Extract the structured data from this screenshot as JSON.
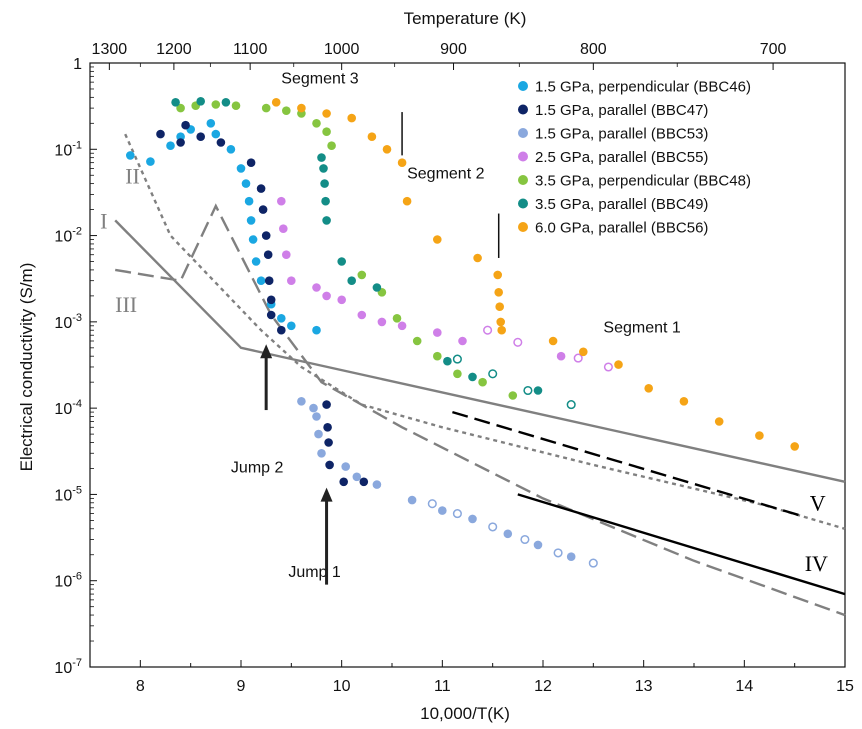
{
  "chart_data": {
    "type": "scatter",
    "xlabel": "10,000/T(K)",
    "ylabel": "Electrical conductivity (S/m)",
    "top_axis_title": "Temperature (K)",
    "xlim": [
      7.5,
      15
    ],
    "ylim_log10": [
      -7,
      0
    ],
    "y_scale": "log",
    "x_ticks": [
      8,
      9,
      10,
      11,
      12,
      13,
      14,
      15
    ],
    "y_ticks": [
      1,
      0.1,
      0.01,
      0.001,
      0.0001,
      1e-05,
      1e-06,
      1e-07
    ],
    "y_tick_labels": [
      {
        "base": "1",
        "exp": ""
      },
      {
        "base": "10",
        "exp": "-1"
      },
      {
        "base": "10",
        "exp": "-2"
      },
      {
        "base": "10",
        "exp": "-3"
      },
      {
        "base": "10",
        "exp": "-4"
      },
      {
        "base": "10",
        "exp": "-5"
      },
      {
        "base": "10",
        "exp": "-6"
      },
      {
        "base": "10",
        "exp": "-7"
      }
    ],
    "top_ticks": [
      1300,
      1200,
      1100,
      1000,
      900,
      800,
      700
    ],
    "legend_position": "top-right",
    "series": [
      {
        "name": "1.5 GPa, perpendicular (BBC46)",
        "color": "#1aa7e2",
        "points": [
          [
            7.9,
            0.085
          ],
          [
            8.1,
            0.072
          ],
          [
            8.3,
            0.11
          ],
          [
            8.4,
            0.14
          ],
          [
            8.5,
            0.17
          ],
          [
            8.7,
            0.2
          ],
          [
            8.75,
            0.15
          ],
          [
            8.9,
            0.1
          ],
          [
            9.0,
            0.06
          ],
          [
            9.05,
            0.04
          ],
          [
            9.08,
            0.025
          ],
          [
            9.1,
            0.015
          ],
          [
            9.12,
            0.009
          ],
          [
            9.15,
            0.005
          ],
          [
            9.2,
            0.003
          ],
          [
            9.3,
            0.0016
          ],
          [
            9.4,
            0.0011
          ],
          [
            9.5,
            0.0009
          ],
          [
            9.75,
            0.0008
          ]
        ],
        "open_points": []
      },
      {
        "name": "1.5 GPa, parallel (BBC47)",
        "color": "#0e2466",
        "points": [
          [
            8.2,
            0.15
          ],
          [
            8.4,
            0.12
          ],
          [
            8.45,
            0.19
          ],
          [
            8.6,
            0.14
          ],
          [
            8.8,
            0.12
          ],
          [
            9.1,
            0.07
          ],
          [
            9.2,
            0.035
          ],
          [
            9.22,
            0.02
          ],
          [
            9.25,
            0.01
          ],
          [
            9.27,
            0.006
          ],
          [
            9.28,
            0.003
          ],
          [
            9.3,
            0.0018
          ],
          [
            9.3,
            0.0012
          ],
          [
            9.4,
            0.0008
          ],
          [
            9.85,
            0.00011
          ],
          [
            9.86,
            6e-05
          ],
          [
            9.87,
            4e-05
          ],
          [
            9.88,
            2.2e-05
          ],
          [
            10.02,
            1.4e-05
          ],
          [
            10.22,
            1.4e-05
          ]
        ],
        "open_points": []
      },
      {
        "name": "1.5 GPa, parallel (BBC53)",
        "color": "#8aa8dd",
        "points": [
          [
            9.6,
            0.00012
          ],
          [
            9.72,
            0.0001
          ],
          [
            9.75,
            8e-05
          ],
          [
            9.77,
            5e-05
          ],
          [
            9.8,
            3e-05
          ],
          [
            10.04,
            2.1e-05
          ],
          [
            10.15,
            1.6e-05
          ],
          [
            10.35,
            1.3e-05
          ],
          [
            10.7,
            8.6e-06
          ],
          [
            11.0,
            6.5e-06
          ],
          [
            11.3,
            5.2e-06
          ],
          [
            11.65,
            3.5e-06
          ],
          [
            11.95,
            2.6e-06
          ],
          [
            12.28,
            1.9e-06
          ]
        ],
        "open_points": [
          [
            10.9,
            7.8e-06
          ],
          [
            11.15,
            6e-06
          ],
          [
            11.5,
            4.2e-06
          ],
          [
            11.82,
            3e-06
          ],
          [
            12.15,
            2.1e-06
          ],
          [
            12.5,
            1.6e-06
          ]
        ]
      },
      {
        "name": "2.5 GPa, parallel (BBC55)",
        "color": "#cf7fe8",
        "points": [
          [
            9.4,
            0.025
          ],
          [
            9.42,
            0.012
          ],
          [
            9.45,
            0.006
          ],
          [
            9.5,
            0.003
          ],
          [
            9.75,
            0.0025
          ],
          [
            9.85,
            0.002
          ],
          [
            10.0,
            0.0018
          ],
          [
            10.2,
            0.0012
          ],
          [
            10.4,
            0.001
          ],
          [
            10.6,
            0.0009
          ],
          [
            10.95,
            0.00075
          ],
          [
            11.2,
            0.0006
          ],
          [
            12.18,
            0.0004
          ]
        ],
        "open_points": [
          [
            11.45,
            0.0008
          ],
          [
            11.75,
            0.00058
          ],
          [
            12.35,
            0.00038
          ],
          [
            12.65,
            0.0003
          ]
        ]
      },
      {
        "name": "3.5 GPa, perpendicular (BBC48)",
        "color": "#86c540",
        "points": [
          [
            8.4,
            0.3
          ],
          [
            8.55,
            0.32
          ],
          [
            8.75,
            0.33
          ],
          [
            8.95,
            0.32
          ],
          [
            9.25,
            0.3
          ],
          [
            9.45,
            0.28
          ],
          [
            9.6,
            0.26
          ],
          [
            9.75,
            0.2
          ],
          [
            9.85,
            0.16
          ],
          [
            9.9,
            0.11
          ],
          [
            10.2,
            0.0035
          ],
          [
            10.4,
            0.0022
          ],
          [
            10.55,
            0.0011
          ],
          [
            10.75,
            0.0006
          ],
          [
            10.95,
            0.0004
          ],
          [
            11.15,
            0.00025
          ],
          [
            11.4,
            0.0002
          ],
          [
            11.7,
            0.00014
          ]
        ],
        "open_points": []
      },
      {
        "name": "3.5 GPa, parallel (BBC49)",
        "color": "#138d87",
        "points": [
          [
            8.35,
            0.35
          ],
          [
            8.6,
            0.36
          ],
          [
            8.85,
            0.35
          ],
          [
            9.8,
            0.08
          ],
          [
            9.82,
            0.06
          ],
          [
            9.83,
            0.04
          ],
          [
            9.84,
            0.025
          ],
          [
            9.85,
            0.015
          ],
          [
            10.0,
            0.005
          ],
          [
            10.1,
            0.003
          ],
          [
            10.35,
            0.0025
          ],
          [
            11.05,
            0.00035
          ],
          [
            11.3,
            0.00023
          ],
          [
            11.95,
            0.00016
          ]
        ],
        "open_points": [
          [
            11.15,
            0.00037
          ],
          [
            11.5,
            0.00025
          ],
          [
            11.85,
            0.00016
          ],
          [
            12.28,
            0.00011
          ]
        ]
      },
      {
        "name": "6.0 GPa, parallel (BBC56)",
        "color": "#f5a416",
        "points": [
          [
            9.35,
            0.35
          ],
          [
            9.6,
            0.3
          ],
          [
            9.85,
            0.26
          ],
          [
            10.1,
            0.23
          ],
          [
            10.3,
            0.14
          ],
          [
            10.45,
            0.1
          ],
          [
            10.6,
            0.07
          ],
          [
            10.65,
            0.025
          ],
          [
            10.95,
            0.009
          ],
          [
            11.35,
            0.0055
          ],
          [
            11.55,
            0.0035
          ],
          [
            11.56,
            0.0022
          ],
          [
            11.57,
            0.0015
          ],
          [
            11.58,
            0.001
          ],
          [
            11.59,
            0.0008
          ],
          [
            12.1,
            0.0006
          ],
          [
            12.4,
            0.00045
          ],
          [
            12.75,
            0.00032
          ],
          [
            13.05,
            0.00017
          ],
          [
            13.4,
            0.00012
          ],
          [
            13.75,
            7e-05
          ],
          [
            14.15,
            4.8e-05
          ],
          [
            14.5,
            3.6e-05
          ]
        ],
        "open_points": []
      }
    ],
    "reference_lines": [
      {
        "label": "I",
        "color": "#808080",
        "dash": "solid",
        "points": [
          [
            7.75,
            0.015
          ],
          [
            9.0,
            0.0005
          ],
          [
            15,
            1.4e-05
          ]
        ]
      },
      {
        "label": "II",
        "color": "#808080",
        "dash": "short",
        "points": [
          [
            7.85,
            0.15
          ],
          [
            8.3,
            0.01
          ],
          [
            9.2,
            0.0008
          ],
          [
            9.6,
            0.0003
          ],
          [
            10.2,
            0.00011
          ],
          [
            11.0,
            6e-05
          ],
          [
            12.5,
            2.2e-05
          ],
          [
            14.2,
            7.5e-06
          ],
          [
            15,
            4e-06
          ]
        ]
      },
      {
        "label": "III",
        "color": "#808080",
        "dash": "long",
        "points": [
          [
            7.75,
            0.004
          ],
          [
            8.4,
            0.003
          ],
          [
            8.75,
            0.022
          ],
          [
            9.3,
            0.0012
          ],
          [
            9.8,
            0.0002
          ],
          [
            10.6,
            6e-05
          ],
          [
            12.0,
            9e-06
          ],
          [
            13.5,
            1.7e-06
          ],
          [
            15,
            4e-07
          ]
        ]
      },
      {
        "label": "IV",
        "color": "#000000",
        "dash": "solid",
        "points": [
          [
            11.75,
            1e-05
          ],
          [
            15,
            7e-07
          ]
        ]
      },
      {
        "label": "V",
        "color": "#000000",
        "dash": "long",
        "points": [
          [
            11.1,
            9e-05
          ],
          [
            14.6,
            5.5e-06
          ]
        ]
      }
    ],
    "series_label_positions": [
      {
        "label": "I",
        "x": 7.6,
        "y": 0.012
      },
      {
        "label": "II",
        "x": 7.85,
        "y": 0.04
      },
      {
        "label": "III",
        "x": 7.75,
        "y": 0.0013
      },
      {
        "label": "IV",
        "x": 14.6,
        "y": 1.3e-06
      },
      {
        "label": "V",
        "x": 14.65,
        "y": 6.5e-06
      }
    ],
    "annotations": [
      {
        "text": "Segment 3",
        "x": 9.4,
        "y": 0.58
      },
      {
        "text": "Segment 2",
        "x": 10.65,
        "y": 0.046
      },
      {
        "text": "Segment 1",
        "x": 12.6,
        "y": 0.00075
      },
      {
        "text": "Jump 2",
        "x": 8.9,
        "y": 1.8e-05
      },
      {
        "text": "Jump 1",
        "x": 9.47,
        "y": 1.1e-06
      }
    ],
    "segment_markers": [
      {
        "x": 10.6,
        "y_from": 0.27,
        "y_to": 0.085
      },
      {
        "x": 11.56,
        "y_from": 0.018,
        "y_to": 0.0055
      }
    ],
    "arrows": [
      {
        "x": 9.25,
        "y_from": 9.5e-05,
        "y_to": 0.00055
      },
      {
        "x": 9.85,
        "y_from": 9e-07,
        "y_to": 1.2e-05
      }
    ]
  }
}
